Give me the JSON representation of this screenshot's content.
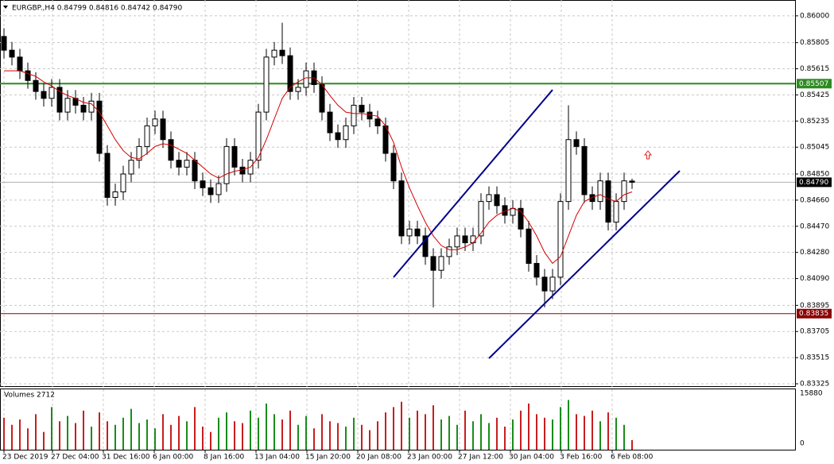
{
  "chart_data": {
    "type": "candlestick",
    "title": "EURGBP.,H4  0.84799 0.84816 0.84742 0.84790",
    "volume_title": "Volumes 2712",
    "xlim": [
      -0.5,
      99.5
    ],
    "ylim": [
      0.83302,
      0.86115
    ],
    "yticks": [
      {
        "value": 0.86,
        "label": "0.86000"
      },
      {
        "value": 0.85805,
        "label": "0.85805"
      },
      {
        "value": 0.85615,
        "label": "0.85615"
      },
      {
        "value": 0.85425,
        "label": "0.85425"
      },
      {
        "value": 0.85235,
        "label": "0.85235"
      },
      {
        "value": 0.85045,
        "label": "0.85045"
      },
      {
        "value": 0.8485,
        "label": "0.84850"
      },
      {
        "value": 0.8466,
        "label": "0.84660"
      },
      {
        "value": 0.8447,
        "label": "0.84470"
      },
      {
        "value": 0.8428,
        "label": "0.84280"
      },
      {
        "value": 0.8409,
        "label": "0.84090"
      },
      {
        "value": 0.83895,
        "label": "0.83895"
      },
      {
        "value": 0.83705,
        "label": "0.83705"
      },
      {
        "value": 0.83515,
        "label": "0.83515"
      },
      {
        "value": 0.83325,
        "label": "0.83325"
      }
    ],
    "xticks": [
      {
        "value": 0,
        "label": "23 Dec 2019"
      },
      {
        "value": 6.1,
        "label": "27 Dec 04:00"
      },
      {
        "value": 12.5,
        "label": "31 Dec 16:00"
      },
      {
        "value": 18.9,
        "label": "6 Jan 00:00"
      },
      {
        "value": 25.3,
        "label": "8 Jan 16:00"
      },
      {
        "value": 31.7,
        "label": "13 Jan 04:00"
      },
      {
        "value": 38.1,
        "label": "15 Jan 20:00"
      },
      {
        "value": 44.5,
        "label": "20 Jan 08:00"
      },
      {
        "value": 50.9,
        "label": "23 Jan 00:00"
      },
      {
        "value": 57.3,
        "label": "27 Jan 12:00"
      },
      {
        "value": 63.7,
        "label": "30 Jan 04:00"
      },
      {
        "value": 70.1,
        "label": "3 Feb 16:00"
      },
      {
        "value": 76.5,
        "label": "6 Feb 08:00"
      }
    ],
    "grid": true,
    "candle_color": "#000000",
    "open": [
      0.8585,
      0.8575,
      0.857,
      0.856,
      0.8553,
      0.8545,
      0.854,
      0.8548,
      0.853,
      0.854,
      0.8535,
      0.853,
      0.8538,
      0.85,
      0.8468,
      0.8472,
      0.8485,
      0.8495,
      0.8505,
      0.852,
      0.8525,
      0.851,
      0.8495,
      0.849,
      0.8495,
      0.848,
      0.8475,
      0.847,
      0.8478,
      0.8505,
      0.849,
      0.8485,
      0.8495,
      0.853,
      0.857,
      0.8575,
      0.8571,
      0.8545,
      0.8548,
      0.856,
      0.855,
      0.853,
      0.8515,
      0.851,
      0.852,
      0.8535,
      0.853,
      0.8525,
      0.852,
      0.85,
      0.848,
      0.844,
      0.8445,
      0.844,
      0.8425,
      0.8415,
      0.8425,
      0.8432,
      0.844,
      0.8435,
      0.844,
      0.8465,
      0.847,
      0.8462,
      0.8455,
      0.846,
      0.8445,
      0.842,
      0.841,
      0.84,
      0.841,
      0.8465,
      0.851,
      0.8505,
      0.847,
      0.8465,
      0.848,
      0.845,
      0.8465,
      0.84799
    ],
    "high": [
      0.8591,
      0.8581,
      0.8576,
      0.8566,
      0.8559,
      0.8551,
      0.8554,
      0.8554,
      0.8546,
      0.8546,
      0.8541,
      0.8544,
      0.8544,
      0.8506,
      0.8478,
      0.8491,
      0.8501,
      0.8511,
      0.8526,
      0.8531,
      0.8531,
      0.8516,
      0.8501,
      0.8501,
      0.8501,
      0.8486,
      0.8481,
      0.8484,
      0.8511,
      0.8511,
      0.8496,
      0.8501,
      0.8536,
      0.8576,
      0.8581,
      0.8595,
      0.8577,
      0.8554,
      0.8566,
      0.8566,
      0.8556,
      0.8536,
      0.8521,
      0.8526,
      0.8541,
      0.8541,
      0.8536,
      0.8531,
      0.8526,
      0.8506,
      0.8486,
      0.8451,
      0.8451,
      0.8446,
      0.8431,
      0.8431,
      0.8438,
      0.8446,
      0.8446,
      0.8446,
      0.8471,
      0.8476,
      0.8476,
      0.8468,
      0.8466,
      0.8466,
      0.8451,
      0.8426,
      0.8416,
      0.8416,
      0.8471,
      0.8535,
      0.8516,
      0.8511,
      0.8476,
      0.8486,
      0.8486,
      0.8471,
      0.8486,
      0.84816
    ],
    "low": [
      0.8569,
      0.8564,
      0.8554,
      0.8547,
      0.8539,
      0.8534,
      0.8534,
      0.8524,
      0.8524,
      0.8529,
      0.8524,
      0.8524,
      0.8494,
      0.8462,
      0.8462,
      0.8466,
      0.8479,
      0.8489,
      0.8499,
      0.8514,
      0.8504,
      0.8489,
      0.8484,
      0.8484,
      0.8474,
      0.8469,
      0.8464,
      0.8464,
      0.8472,
      0.8484,
      0.8479,
      0.8479,
      0.8489,
      0.8524,
      0.8564,
      0.8565,
      0.8539,
      0.8539,
      0.8542,
      0.8544,
      0.8524,
      0.8509,
      0.8504,
      0.8504,
      0.8514,
      0.8524,
      0.8519,
      0.8514,
      0.8494,
      0.8474,
      0.8434,
      0.8434,
      0.8434,
      0.8419,
      0.8388,
      0.8409,
      0.8419,
      0.8426,
      0.8429,
      0.8429,
      0.8434,
      0.8459,
      0.8456,
      0.8449,
      0.8449,
      0.8439,
      0.8414,
      0.8404,
      0.8388,
      0.8394,
      0.8404,
      0.8459,
      0.8499,
      0.8464,
      0.8459,
      0.8459,
      0.8444,
      0.8444,
      0.8459,
      0.84742
    ],
    "close": [
      0.8575,
      0.857,
      0.856,
      0.8553,
      0.8545,
      0.854,
      0.8548,
      0.853,
      0.854,
      0.8535,
      0.853,
      0.8538,
      0.85,
      0.8468,
      0.8472,
      0.8485,
      0.8495,
      0.8505,
      0.852,
      0.8525,
      0.851,
      0.8495,
      0.849,
      0.8495,
      0.848,
      0.8475,
      0.847,
      0.8478,
      0.8505,
      0.849,
      0.8485,
      0.8495,
      0.853,
      0.857,
      0.8575,
      0.8571,
      0.8545,
      0.8548,
      0.856,
      0.855,
      0.853,
      0.8515,
      0.851,
      0.852,
      0.8535,
      0.853,
      0.8525,
      0.852,
      0.85,
      0.848,
      0.844,
      0.8445,
      0.844,
      0.8425,
      0.8415,
      0.8425,
      0.8432,
      0.844,
      0.8435,
      0.844,
      0.8465,
      0.847,
      0.8462,
      0.8455,
      0.846,
      0.8445,
      0.842,
      0.841,
      0.84,
      0.841,
      0.8465,
      0.851,
      0.8505,
      0.847,
      0.8465,
      0.848,
      0.845,
      0.8465,
      0.848,
      0.8479
    ],
    "ma": {
      "color": "#d40000",
      "values": [
        0.856,
        0.856,
        0.856,
        0.8558,
        0.8556,
        0.8552,
        0.8549,
        0.8545,
        0.8542,
        0.854,
        0.8537,
        0.8536,
        0.853,
        0.852,
        0.851,
        0.8502,
        0.8497,
        0.8496,
        0.85,
        0.8505,
        0.8507,
        0.8506,
        0.8503,
        0.85,
        0.8495,
        0.849,
        0.8485,
        0.8482,
        0.8485,
        0.8487,
        0.8488,
        0.849,
        0.8497,
        0.851,
        0.8525,
        0.854,
        0.8548,
        0.8552,
        0.8555,
        0.8555,
        0.855,
        0.8542,
        0.8535,
        0.853,
        0.8529,
        0.8529,
        0.8528,
        0.8527,
        0.852,
        0.8508,
        0.849,
        0.8475,
        0.8462,
        0.845,
        0.844,
        0.8433,
        0.843,
        0.843,
        0.8432,
        0.8435,
        0.8442,
        0.845,
        0.8455,
        0.8458,
        0.846,
        0.8458,
        0.845,
        0.844,
        0.8428,
        0.842,
        0.8425,
        0.844,
        0.8455,
        0.8465,
        0.8468,
        0.847,
        0.8467,
        0.8465,
        0.847,
        0.8472
      ]
    },
    "levels": [
      {
        "value": 0.85507,
        "label": "0.85507",
        "color": "#2e8b22"
      },
      {
        "value": 0.83835,
        "label": "0.83835",
        "color": "#8b0000"
      },
      {
        "value": 0.8479,
        "label": "0.84790",
        "color": "#000000"
      }
    ],
    "trendlines": [
      {
        "x": [
          49,
          69
        ],
        "y": [
          0.84099,
          0.85462
        ],
        "color": "#00008b"
      },
      {
        "x": [
          61,
          85
        ],
        "y": [
          0.8351,
          0.84873
        ],
        "color": "#00008b"
      }
    ],
    "volumes": [
      9000,
      7000,
      8500,
      6000,
      10000,
      5000,
      12000,
      8000,
      9500,
      7500,
      11000,
      6500,
      10500,
      8000,
      7000,
      9000,
      11500,
      7500,
      8500,
      6000,
      10000,
      7000,
      9500,
      8000,
      12000,
      6500,
      5000,
      9000,
      10500,
      8000,
      7500,
      11000,
      9000,
      13000,
      10000,
      8500,
      11000,
      7000,
      9500,
      6000,
      10000,
      8000,
      7500,
      6500,
      9000,
      7000,
      5500,
      8000,
      10500,
      12000,
      13500,
      9000,
      11000,
      10000,
      12500,
      8500,
      9500,
      7000,
      11000,
      8000,
      10000,
      7500,
      9000,
      6500,
      8500,
      11000,
      13000,
      10000,
      9000,
      8500,
      12000,
      14000,
      10000,
      9500,
      11000,
      8000,
      10500,
      9000,
      7000,
      2712
    ],
    "volume_ylim": [
      0,
      17000
    ],
    "volume_yticks": [
      15880,
      0
    ],
    "volume_up_color": "#1a8c1a",
    "volume_down_color": "#c81e1e"
  }
}
